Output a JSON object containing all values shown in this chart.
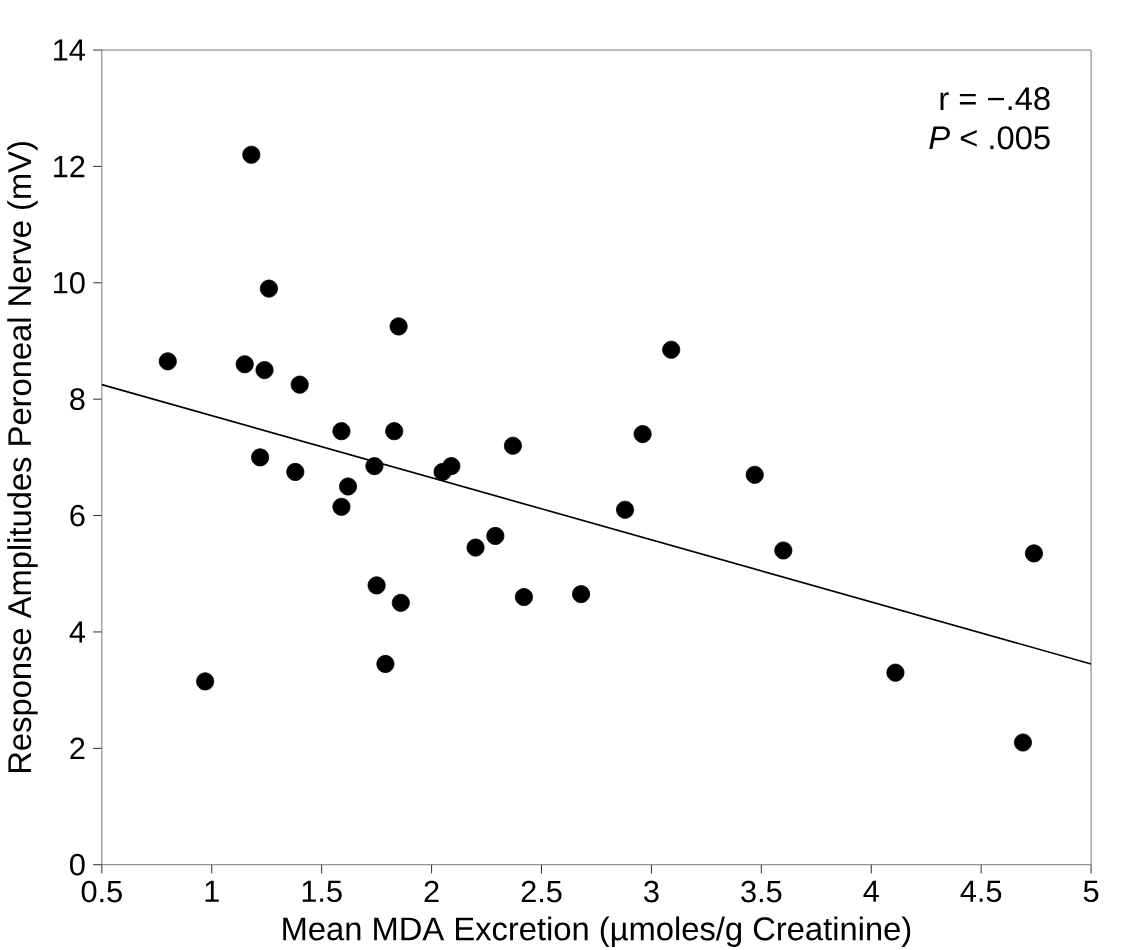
{
  "chart_data": {
    "type": "scatter",
    "xlabel": "Mean MDA Excretion (µmoles/g Creatinine)",
    "ylabel": "Response Amplitudes Peroneal Nerve (mV)",
    "xlim": [
      0.5,
      5
    ],
    "ylim": [
      0,
      14
    ],
    "xticks": [
      0.5,
      1,
      1.5,
      2,
      2.5,
      3,
      3.5,
      4,
      4.5,
      5
    ],
    "yticks": [
      0,
      2,
      4,
      6,
      8,
      10,
      12,
      14
    ],
    "grid": false,
    "annotations": [
      "r = −.48",
      "*P* < .005"
    ],
    "series": [
      {
        "marker": "circle",
        "color": "#000000",
        "x": [
          0.8,
          0.97,
          1.15,
          1.18,
          1.22,
          1.24,
          1.26,
          1.38,
          1.4,
          1.59,
          1.59,
          1.62,
          1.74,
          1.75,
          1.79,
          1.83,
          1.85,
          1.86,
          2.05,
          2.09,
          2.2,
          2.29,
          2.37,
          2.42,
          2.68,
          2.88,
          2.96,
          3.09,
          3.47,
          3.6,
          4.11,
          4.69,
          4.74
        ],
        "values": [
          8.65,
          3.15,
          8.6,
          12.2,
          7.0,
          8.5,
          9.9,
          6.75,
          8.25,
          7.45,
          6.15,
          6.5,
          6.85,
          4.8,
          3.45,
          7.45,
          9.25,
          4.5,
          6.75,
          6.85,
          5.45,
          5.65,
          7.2,
          4.6,
          4.65,
          6.1,
          7.4,
          8.85,
          6.7,
          5.4,
          3.3,
          2.1,
          5.35
        ]
      },
      {
        "type": "line",
        "marker": "none",
        "color": "#000000",
        "x": [
          0.5,
          5
        ],
        "values": [
          8.25,
          3.45
        ]
      }
    ]
  }
}
